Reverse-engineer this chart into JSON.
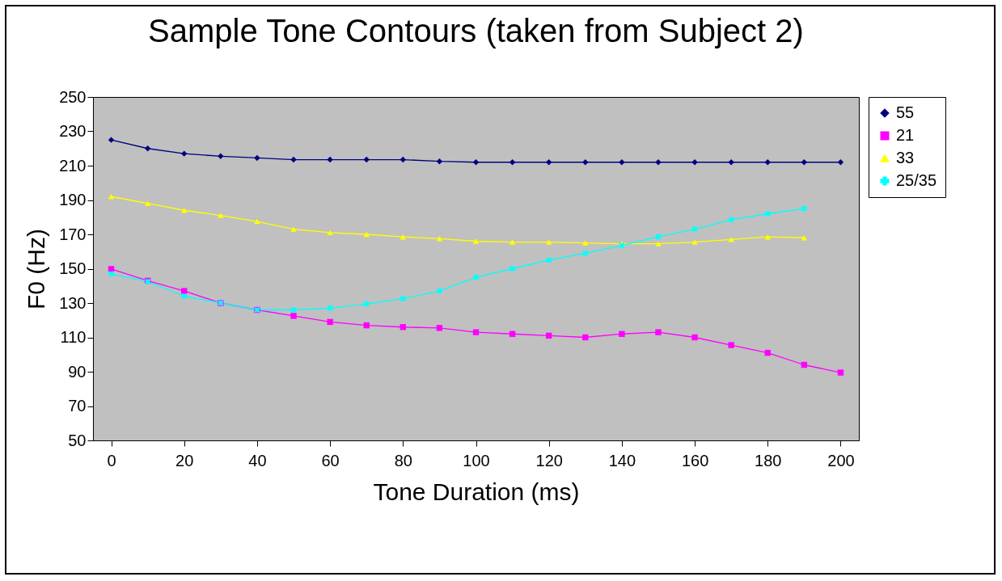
{
  "chart_data": {
    "type": "line",
    "title": "Sample Tone Contours (taken from Subject 2)",
    "xlabel": "Tone Duration (ms)",
    "ylabel": "F0 (Hz)",
    "x": [
      0,
      10,
      20,
      30,
      40,
      50,
      60,
      70,
      80,
      90,
      100,
      110,
      120,
      130,
      140,
      150,
      160,
      170,
      180,
      190,
      200
    ],
    "xlim": [
      -5,
      205
    ],
    "xticks": [
      0,
      20,
      40,
      60,
      80,
      100,
      120,
      140,
      160,
      180,
      200
    ],
    "ylim": [
      50,
      250
    ],
    "yticks": [
      50,
      70,
      90,
      110,
      130,
      150,
      170,
      190,
      210,
      230,
      250
    ],
    "grid": false,
    "legend": "right",
    "series": [
      {
        "name": "55",
        "color": "#000080",
        "marker": "diamond",
        "values": [
          225,
          220,
          217,
          215.5,
          214.5,
          213.5,
          213.5,
          213.5,
          213.5,
          212.5,
          212,
          212,
          212,
          212,
          212,
          212,
          212,
          212,
          212,
          212,
          212
        ]
      },
      {
        "name": "21",
        "color": "#ff00ff",
        "marker": "square",
        "values": [
          149.8,
          143,
          137,
          130,
          126,
          122.5,
          119,
          117,
          116,
          115.5,
          113,
          112,
          111,
          110,
          112,
          113,
          110,
          105.5,
          101,
          94,
          89.5
        ]
      },
      {
        "name": "33",
        "color": "#ffff00",
        "marker": "triangle",
        "x": [
          0,
          10,
          20,
          30,
          40,
          50,
          60,
          70,
          80,
          90,
          100,
          110,
          120,
          130,
          140,
          150,
          160,
          170,
          180,
          190
        ],
        "values": [
          192,
          188,
          184,
          181,
          177.5,
          173,
          171,
          170,
          168.5,
          167.5,
          166,
          165.5,
          165.5,
          165,
          164.5,
          164.5,
          165.5,
          167,
          168.5,
          168
        ]
      },
      {
        "name": "25/35",
        "color": "#00ffff",
        "marker": "cross",
        "x": [
          0,
          10,
          20,
          30,
          40,
          50,
          60,
          70,
          80,
          90,
          100,
          110,
          120,
          130,
          140,
          150,
          160,
          170,
          180,
          190
        ],
        "values": [
          147,
          142.5,
          134,
          130,
          126,
          126,
          127,
          129.5,
          132.5,
          137,
          145,
          150,
          155,
          159,
          163.5,
          168.5,
          173,
          178.5,
          182,
          185
        ]
      }
    ]
  }
}
